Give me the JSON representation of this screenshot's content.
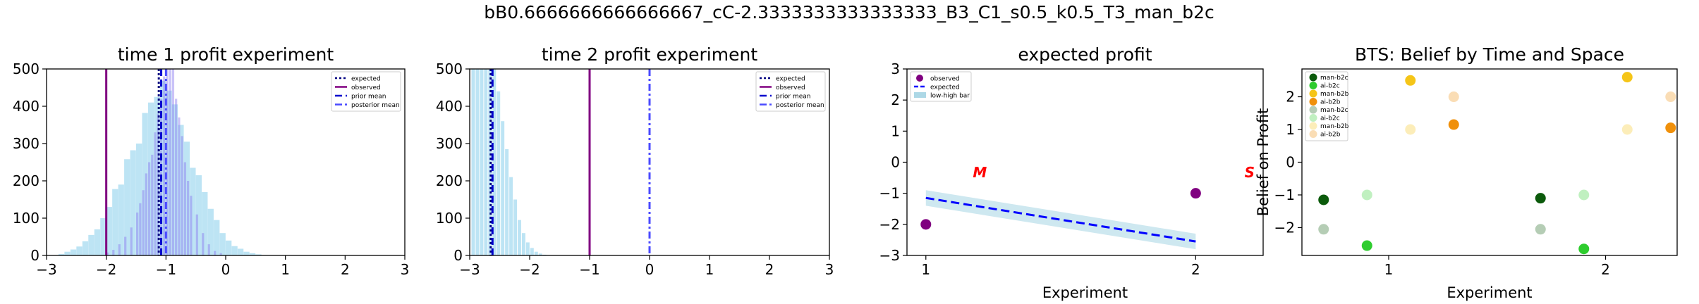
{
  "suptitle": "bB0.6666666666666667_cC-2.3333333333333333_B3_C1_s0.5_k0.5_T3_man_b2c",
  "chart_data": [
    {
      "type": "histogram",
      "title": "time 1 profit experiment",
      "xlabel": "",
      "ylabel": "",
      "xlim": [
        -3,
        3
      ],
      "ylim": [
        0,
        500
      ],
      "xticks": [
        -3,
        -2,
        -1,
        0,
        1,
        2,
        3
      ],
      "yticks": [
        0,
        100,
        200,
        300,
        400,
        500
      ],
      "grid": false,
      "legend_position": "top-right",
      "histograms": [
        {
          "color": "#87ceeb",
          "opacity": 0.55,
          "bin_width": 0.11,
          "bins": [
            [
              -2.8,
              4
            ],
            [
              -2.7,
              10
            ],
            [
              -2.6,
              16
            ],
            [
              -2.5,
              24
            ],
            [
              -2.4,
              38
            ],
            [
              -2.3,
              55
            ],
            [
              -2.2,
              70
            ],
            [
              -2.1,
              100
            ],
            [
              -2.0,
              130
            ],
            [
              -1.9,
              178
            ],
            [
              -1.8,
              190
            ],
            [
              -1.7,
              258
            ],
            [
              -1.6,
              282
            ],
            [
              -1.5,
              300
            ],
            [
              -1.4,
              382
            ],
            [
              -1.3,
              410
            ],
            [
              -1.2,
              425
            ],
            [
              -1.1,
              468
            ],
            [
              -1.0,
              442
            ],
            [
              -0.9,
              405
            ],
            [
              -0.8,
              350
            ],
            [
              -0.7,
              305
            ],
            [
              -0.6,
              235
            ],
            [
              -0.5,
              215
            ],
            [
              -0.4,
              170
            ],
            [
              -0.3,
              125
            ],
            [
              -0.2,
              95
            ],
            [
              -0.1,
              60
            ],
            [
              0.0,
              40
            ],
            [
              0.1,
              25
            ],
            [
              0.2,
              18
            ],
            [
              0.3,
              10
            ],
            [
              0.4,
              6
            ],
            [
              0.5,
              3
            ]
          ]
        },
        {
          "color": "#8a7bef",
          "opacity": 0.45,
          "bin_width": 0.05,
          "bins": [
            [
              -2.0,
              8
            ],
            [
              -1.9,
              15
            ],
            [
              -1.8,
              30
            ],
            [
              -1.7,
              50
            ],
            [
              -1.6,
              75
            ],
            [
              -1.5,
              115
            ],
            [
              -1.45,
              140
            ],
            [
              -1.4,
              175
            ],
            [
              -1.35,
              220
            ],
            [
              -1.3,
              250
            ],
            [
              -1.25,
              270
            ],
            [
              -1.2,
              330
            ],
            [
              -1.15,
              380
            ],
            [
              -1.1,
              420
            ],
            [
              -1.05,
              480
            ],
            [
              -1.0,
              500
            ],
            [
              -0.95,
              500
            ],
            [
              -0.9,
              500
            ],
            [
              -0.85,
              420
            ],
            [
              -0.8,
              370
            ],
            [
              -0.75,
              320
            ],
            [
              -0.7,
              250
            ],
            [
              -0.65,
              200
            ],
            [
              -0.6,
              160
            ],
            [
              -0.5,
              110
            ],
            [
              -0.4,
              60
            ],
            [
              -0.3,
              30
            ],
            [
              -0.2,
              12
            ],
            [
              -0.1,
              6
            ]
          ]
        }
      ],
      "vlines": [
        {
          "name": "expected",
          "x": -1.12,
          "color": "#000080",
          "style": "dotted"
        },
        {
          "name": "observed",
          "x": -2.0,
          "color": "#800080",
          "style": "solid"
        },
        {
          "name": "prior mean",
          "x": -1.08,
          "color": "#0000cd",
          "style": "dashed"
        },
        {
          "name": "posterior mean",
          "x": -1.0,
          "color": "#4a4aff",
          "style": "dashdot"
        }
      ],
      "legend": [
        "expected",
        "observed",
        "prior mean",
        "posterior mean"
      ]
    },
    {
      "type": "histogram",
      "title": "time 2 profit experiment",
      "xlabel": "",
      "ylabel": "",
      "xlim": [
        -3,
        3
      ],
      "ylim": [
        0,
        500
      ],
      "xticks": [
        -3,
        -2,
        -1,
        0,
        1,
        2,
        3
      ],
      "yticks": [
        0,
        100,
        200,
        300,
        400,
        500
      ],
      "grid": false,
      "legend_position": "top-right",
      "histograms": [
        {
          "color": "#87ceeb",
          "opacity": 0.55,
          "bin_width": 0.07,
          "bins": [
            [
              -2.97,
              500
            ],
            [
              -2.9,
              500
            ],
            [
              -2.83,
              500
            ],
            [
              -2.76,
              500
            ],
            [
              -2.69,
              500
            ],
            [
              -2.62,
              500
            ],
            [
              -2.55,
              440
            ],
            [
              -2.48,
              360
            ],
            [
              -2.41,
              285
            ],
            [
              -2.34,
              210
            ],
            [
              -2.27,
              150
            ],
            [
              -2.2,
              95
            ],
            [
              -2.13,
              60
            ],
            [
              -2.06,
              35
            ],
            [
              -1.99,
              20
            ],
            [
              -1.92,
              10
            ],
            [
              -1.85,
              5
            ],
            [
              -1.78,
              2
            ]
          ]
        }
      ],
      "vlines": [
        {
          "name": "expected",
          "x": -2.65,
          "color": "#000080",
          "style": "dotted"
        },
        {
          "name": "observed",
          "x": -1.0,
          "color": "#800080",
          "style": "solid"
        },
        {
          "name": "prior mean",
          "x": -2.62,
          "color": "#0000cd",
          "style": "dashed"
        },
        {
          "name": "posterior mean",
          "x": 0.0,
          "color": "#4a4aff",
          "style": "dashdot"
        }
      ],
      "legend": [
        "expected",
        "observed",
        "prior mean",
        "posterior mean"
      ]
    },
    {
      "type": "line",
      "title": "expected profit",
      "xlabel": "Experiment",
      "ylabel": "",
      "xlim": [
        0.93,
        2.25
      ],
      "ylim": [
        -3,
        3
      ],
      "xticks": [
        1,
        2
      ],
      "yticks": [
        -3,
        -2,
        -1,
        0,
        1,
        2,
        3
      ],
      "grid": false,
      "legend_position": "top-left",
      "observed": {
        "x": [
          1,
          2
        ],
        "y": [
          -2.0,
          -1.0
        ],
        "color": "#800080"
      },
      "expected": {
        "x": [
          1,
          2
        ],
        "y": [
          -1.15,
          -2.55
        ],
        "color": "#0000ff"
      },
      "band": {
        "x": [
          1,
          2
        ],
        "low": [
          -1.4,
          -2.8
        ],
        "high": [
          -0.9,
          -2.3
        ],
        "color": "#add8e6"
      },
      "annotations": [
        {
          "text": "M",
          "x": 1.2,
          "y": -0.3,
          "color": "#ff0000"
        },
        {
          "text": "S",
          "x": 2.2,
          "y": -0.3,
          "color": "#ff0000"
        }
      ],
      "legend": [
        "observed",
        "expected",
        "low-high bar"
      ]
    },
    {
      "type": "scatter",
      "title": "BTS: Belief by Time and Space",
      "xlabel": "Experiment",
      "ylabel": "Belief on Profit",
      "xlim": [
        0.6,
        2.33
      ],
      "ylim": [
        -2.85,
        2.85
      ],
      "xticks": [
        1,
        2
      ],
      "yticks": [
        -2,
        -1,
        0,
        1,
        2
      ],
      "grid": false,
      "legend_position": "top-left",
      "series": [
        {
          "name": "man-b2c",
          "color": "#0b5a0b",
          "opacity": 1.0,
          "x": [
            0.7,
            1.7
          ],
          "y": [
            -1.15,
            -1.1
          ]
        },
        {
          "name": "ai-b2c",
          "color": "#2ecc2e",
          "opacity": 1.0,
          "x": [
            0.9,
            1.9
          ],
          "y": [
            -2.55,
            -2.65
          ]
        },
        {
          "name": "man-b2b",
          "color": "#f5c518",
          "opacity": 1.0,
          "x": [
            1.1,
            2.1
          ],
          "y": [
            2.5,
            2.6
          ]
        },
        {
          "name": "ai-b2b",
          "color": "#f0900a",
          "opacity": 1.0,
          "x": [
            1.3,
            2.3
          ],
          "y": [
            1.15,
            1.05
          ]
        },
        {
          "name": "man-b2c",
          "color": "#0b5a0b",
          "opacity": 0.3,
          "x": [
            0.7,
            1.7
          ],
          "y": [
            -2.05,
            -2.05
          ]
        },
        {
          "name": "ai-b2c",
          "color": "#2ecc2e",
          "opacity": 0.3,
          "x": [
            0.9,
            1.9
          ],
          "y": [
            -1.0,
            -1.0
          ]
        },
        {
          "name": "man-b2b",
          "color": "#f5c518",
          "opacity": 0.3,
          "x": [
            1.1,
            2.1
          ],
          "y": [
            1.0,
            1.0
          ]
        },
        {
          "name": "ai-b2b",
          "color": "#f0900a",
          "opacity": 0.3,
          "x": [
            1.3,
            2.3
          ],
          "y": [
            2.0,
            2.0
          ]
        }
      ],
      "legend": [
        "man-b2c",
        "ai-b2c",
        "man-b2b",
        "ai-b2b",
        "man-b2c",
        "ai-b2c",
        "man-b2b",
        "ai-b2b"
      ]
    }
  ]
}
